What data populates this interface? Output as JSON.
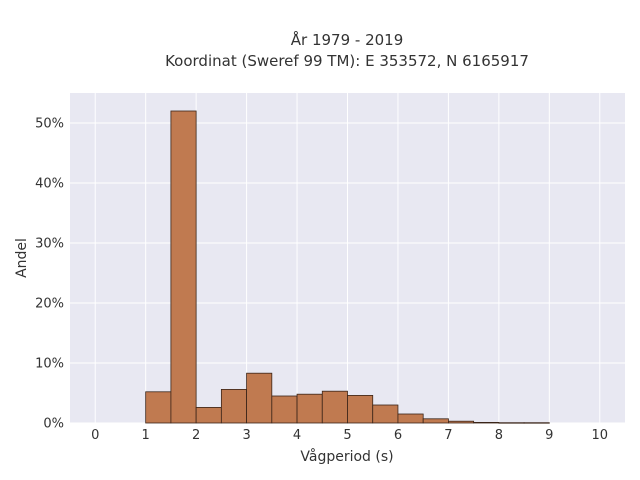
{
  "chart_data": {
    "type": "bar",
    "title_line1": "År 1979 - 2019",
    "title_line2": "Koordinat (Sweref 99 TM): E 353572, N 6165917",
    "xlabel": "Vågperiod (s)",
    "ylabel": "Andel",
    "xlim": [
      -0.5,
      10.5
    ],
    "ylim": [
      0,
      55
    ],
    "x_ticks": [
      0,
      1,
      2,
      3,
      4,
      5,
      6,
      7,
      8,
      9,
      10
    ],
    "y_ticks": [
      0,
      10,
      20,
      30,
      40,
      50
    ],
    "y_tick_labels": [
      "0%",
      "10%",
      "20%",
      "30%",
      "40%",
      "50%"
    ],
    "bin_width": 0.5,
    "bins": [
      {
        "start": 1.0,
        "value": 5.2
      },
      {
        "start": 1.5,
        "value": 52.0
      },
      {
        "start": 2.0,
        "value": 2.6
      },
      {
        "start": 2.5,
        "value": 5.6
      },
      {
        "start": 3.0,
        "value": 8.3
      },
      {
        "start": 3.5,
        "value": 4.5
      },
      {
        "start": 4.0,
        "value": 4.8
      },
      {
        "start": 4.5,
        "value": 5.3
      },
      {
        "start": 5.0,
        "value": 4.6
      },
      {
        "start": 5.5,
        "value": 3.0
      },
      {
        "start": 6.0,
        "value": 1.5
      },
      {
        "start": 6.5,
        "value": 0.7
      },
      {
        "start": 7.0,
        "value": 0.3
      },
      {
        "start": 7.5,
        "value": 0.1
      },
      {
        "start": 8.0,
        "value": 0.05
      },
      {
        "start": 8.5,
        "value": 0.05
      }
    ],
    "grid": true,
    "colors": {
      "bar_fill": "#c07a50",
      "bar_stroke": "#3a2418",
      "plot_bg": "#e8e8f2",
      "grid": "#ffffff",
      "text": "#333333"
    }
  }
}
